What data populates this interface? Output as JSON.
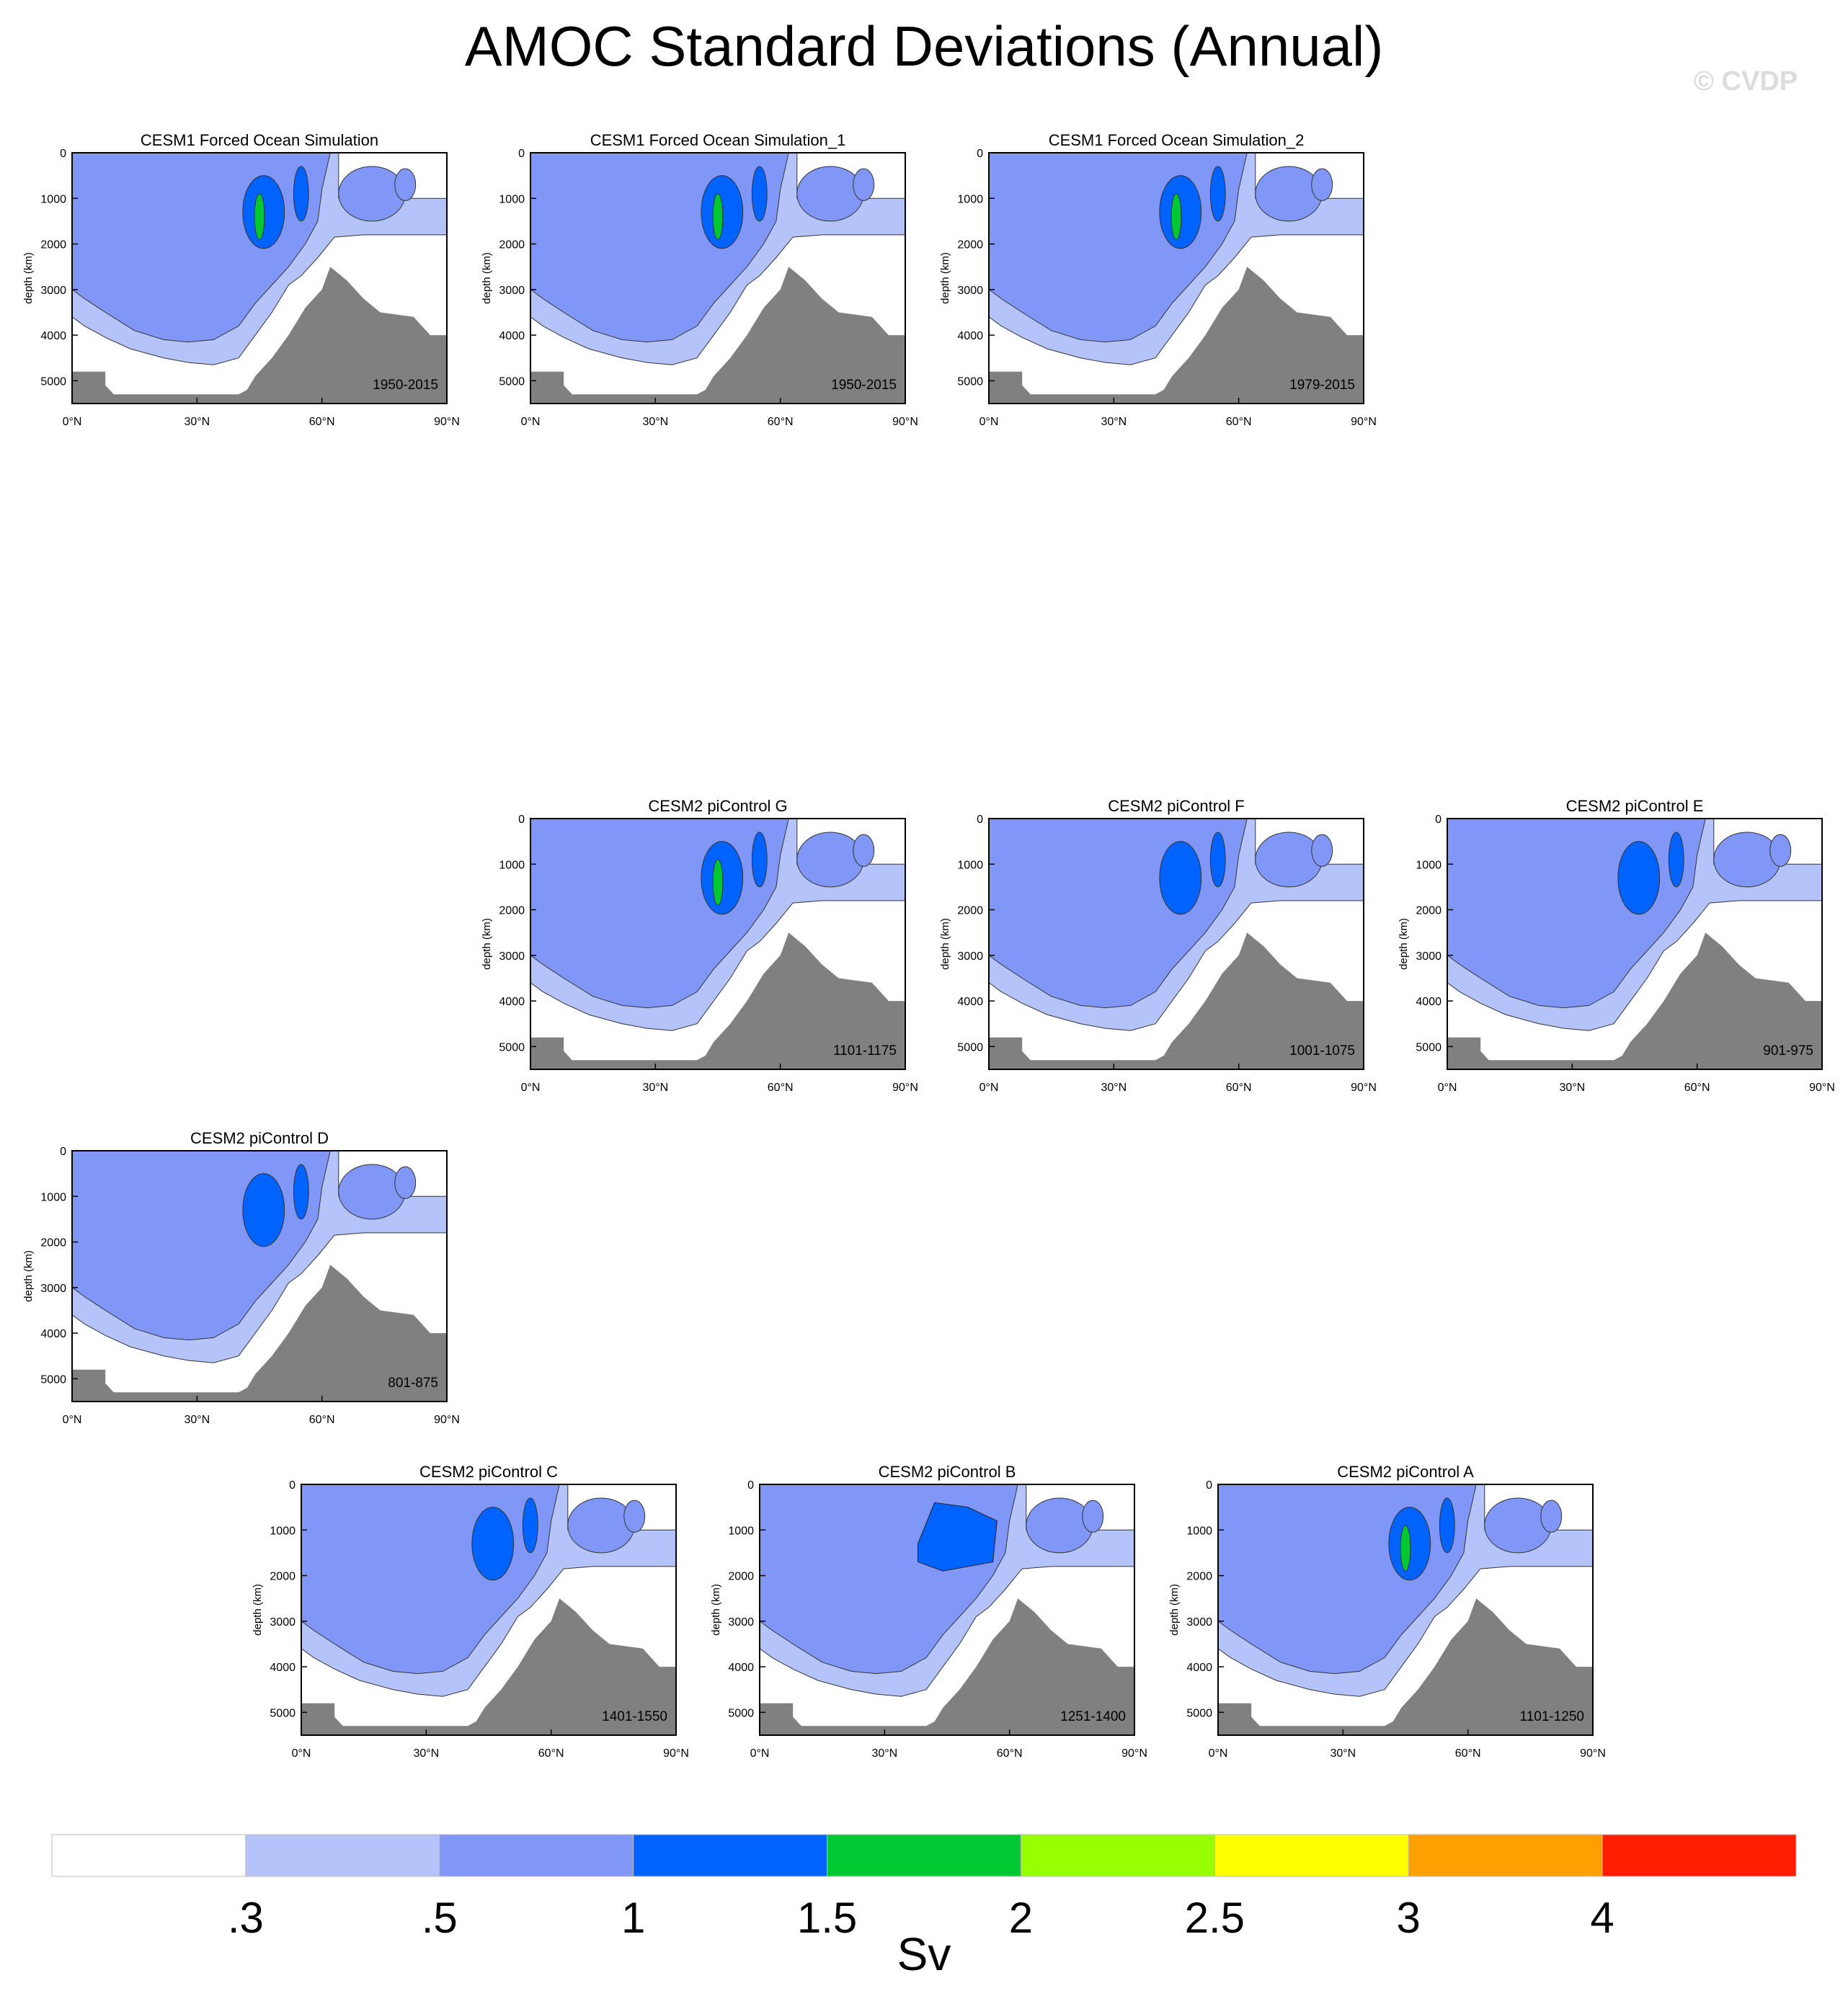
{
  "title": "AMOC Standard Deviations (Annual)",
  "watermark": "© CVDP",
  "colors": {
    "levels": [
      "#ffffff",
      "#b4c4fa",
      "#8097f8",
      "#0062ff",
      "#00c832",
      "#96ff00",
      "#ffff00",
      "#ffa000",
      "#ff1e00"
    ],
    "land": "#808080"
  },
  "chart_data": [
    {
      "type": "contour",
      "title": "CESM1 Forced Ocean Simulation",
      "period": "1950-2015",
      "ylabel": "depth (km)",
      "yticks": [
        "0",
        "1000",
        "2000",
        "3000",
        "4000",
        "5000"
      ],
      "xticks": [
        "0°N",
        "30°N",
        "60°N",
        "90°N"
      ],
      "ylim": [
        0,
        5500
      ],
      "xlim": [
        0,
        90
      ],
      "max_level": "2"
    },
    {
      "type": "contour",
      "title": "CESM1 Forced Ocean Simulation_1",
      "period": "1950-2015",
      "ylabel": "depth (km)",
      "yticks": [
        "0",
        "1000",
        "2000",
        "3000",
        "4000",
        "5000"
      ],
      "xticks": [
        "0°N",
        "30°N",
        "60°N",
        "90°N"
      ],
      "ylim": [
        0,
        5500
      ],
      "xlim": [
        0,
        90
      ],
      "max_level": "2"
    },
    {
      "type": "contour",
      "title": "CESM1 Forced Ocean Simulation_2",
      "period": "1979-2015",
      "ylabel": "depth (km)",
      "yticks": [
        "0",
        "1000",
        "2000",
        "3000",
        "4000",
        "5000"
      ],
      "xticks": [
        "0°N",
        "30°N",
        "60°N",
        "90°N"
      ],
      "ylim": [
        0,
        5500
      ],
      "xlim": [
        0,
        90
      ],
      "max_level": "2"
    },
    {
      "type": "contour",
      "title": "CESM2 piControl G",
      "period": "1101-1175",
      "ylabel": "depth (km)",
      "yticks": [
        "0",
        "1000",
        "2000",
        "3000",
        "4000",
        "5000"
      ],
      "xticks": [
        "0°N",
        "30°N",
        "60°N",
        "90°N"
      ],
      "ylim": [
        0,
        5500
      ],
      "xlim": [
        0,
        90
      ],
      "max_level": "2"
    },
    {
      "type": "contour",
      "title": "CESM2 piControl F",
      "period": "1001-1075",
      "ylabel": "depth (km)",
      "yticks": [
        "0",
        "1000",
        "2000",
        "3000",
        "4000",
        "5000"
      ],
      "xticks": [
        "0°N",
        "30°N",
        "60°N",
        "90°N"
      ],
      "ylim": [
        0,
        5500
      ],
      "xlim": [
        0,
        90
      ],
      "max_level": "1.5"
    },
    {
      "type": "contour",
      "title": "CESM2 piControl E",
      "period": "901-975",
      "ylabel": "depth (km)",
      "yticks": [
        "0",
        "1000",
        "2000",
        "3000",
        "4000",
        "5000"
      ],
      "xticks": [
        "0°N",
        "30°N",
        "60°N",
        "90°N"
      ],
      "ylim": [
        0,
        5500
      ],
      "xlim": [
        0,
        90
      ],
      "max_level": "1.5"
    },
    {
      "type": "contour",
      "title": "CESM2 piControl D",
      "period": "801-875",
      "ylabel": "depth (km)",
      "yticks": [
        "0",
        "1000",
        "2000",
        "3000",
        "4000",
        "5000"
      ],
      "xticks": [
        "0°N",
        "30°N",
        "60°N",
        "90°N"
      ],
      "ylim": [
        0,
        5500
      ],
      "xlim": [
        0,
        90
      ],
      "max_level": "1.5"
    },
    {
      "type": "contour",
      "title": "CESM2 piControl C",
      "period": "1401-1550",
      "ylabel": "depth (km)",
      "yticks": [
        "0",
        "1000",
        "2000",
        "3000",
        "4000",
        "5000"
      ],
      "xticks": [
        "0°N",
        "30°N",
        "60°N",
        "90°N"
      ],
      "ylim": [
        0,
        5500
      ],
      "xlim": [
        0,
        90
      ],
      "max_level": "1.5"
    },
    {
      "type": "contour",
      "title": "CESM2 piControl B",
      "period": "1251-1400",
      "ylabel": "depth (km)",
      "yticks": [
        "0",
        "1000",
        "2000",
        "3000",
        "4000",
        "5000"
      ],
      "xticks": [
        "0°N",
        "30°N",
        "60°N",
        "90°N"
      ],
      "ylim": [
        0,
        5500
      ],
      "xlim": [
        0,
        90
      ],
      "max_level": "1.5"
    },
    {
      "type": "contour",
      "title": "CESM2 piControl A",
      "period": "1101-1250",
      "ylabel": "depth (km)",
      "yticks": [
        "0",
        "1000",
        "2000",
        "3000",
        "4000",
        "5000"
      ],
      "xticks": [
        "0°N",
        "30°N",
        "60°N",
        "90°N"
      ],
      "ylim": [
        0,
        5500
      ],
      "xlim": [
        0,
        90
      ],
      "max_level": "2"
    }
  ],
  "colorbar": {
    "labels": [
      ".3",
      ".5",
      "1",
      "1.5",
      "2",
      "2.5",
      "3",
      "4"
    ],
    "unit": "Sv"
  }
}
